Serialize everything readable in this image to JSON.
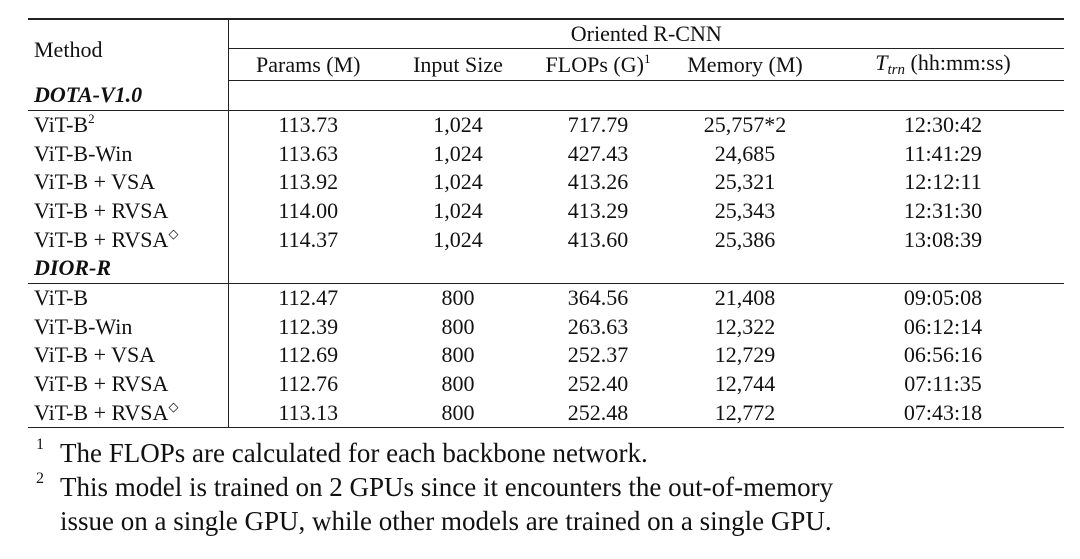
{
  "table": {
    "method_header": "Method",
    "group_header": "Oriented R-CNN",
    "columns": {
      "params": "Params (M)",
      "input_size": "Input Size",
      "flops": "FLOPs (G)",
      "flops_note_mark": "1",
      "memory": "Memory (M)",
      "ttrn_symbol": "T",
      "ttrn_subscript": "trn",
      "ttrn_units": "(hh:mm:ss)"
    },
    "sections": [
      {
        "name": "DOTA-V1.0",
        "rows": [
          {
            "method": "ViT-B",
            "mark": "2",
            "params": "113.73",
            "input_size": "1,024",
            "flops": "717.79",
            "memory": "25,757*2",
            "ttrn": "12:30:42"
          },
          {
            "method": "ViT-B-Win",
            "mark": "",
            "params": "113.63",
            "input_size": "1,024",
            "flops": "427.43",
            "memory": "24,685",
            "ttrn": "11:41:29"
          },
          {
            "method": "ViT-B + VSA",
            "mark": "",
            "params": "113.92",
            "input_size": "1,024",
            "flops": "413.26",
            "memory": "25,321",
            "ttrn": "12:12:11"
          },
          {
            "method": "ViT-B + RVSA",
            "mark": "",
            "params": "114.00",
            "input_size": "1,024",
            "flops": "413.29",
            "memory": "25,343",
            "ttrn": "12:31:30"
          },
          {
            "method": "ViT-B + RVSA",
            "mark": "◇",
            "params": "114.37",
            "input_size": "1,024",
            "flops": "413.60",
            "memory": "25,386",
            "ttrn": "13:08:39"
          }
        ]
      },
      {
        "name": "DIOR-R",
        "rows": [
          {
            "method": "ViT-B",
            "mark": "",
            "params": "112.47",
            "input_size": "800",
            "flops": "364.56",
            "memory": "21,408",
            "ttrn": "09:05:08"
          },
          {
            "method": "ViT-B-Win",
            "mark": "",
            "params": "112.39",
            "input_size": "800",
            "flops": "263.63",
            "memory": "12,322",
            "ttrn": "06:12:14"
          },
          {
            "method": "ViT-B + VSA",
            "mark": "",
            "params": "112.69",
            "input_size": "800",
            "flops": "252.37",
            "memory": "12,729",
            "ttrn": "06:56:16"
          },
          {
            "method": "ViT-B + RVSA",
            "mark": "",
            "params": "112.76",
            "input_size": "800",
            "flops": "252.40",
            "memory": "12,744",
            "ttrn": "07:11:35"
          },
          {
            "method": "ViT-B + RVSA",
            "mark": "◇",
            "params": "113.13",
            "input_size": "800",
            "flops": "252.48",
            "memory": "12,772",
            "ttrn": "07:43:18"
          }
        ]
      }
    ]
  },
  "footnotes": [
    {
      "mark": "1",
      "lines": [
        "The FLOPs are calculated for each backbone network."
      ]
    },
    {
      "mark": "2",
      "lines": [
        "This model is trained on 2 GPUs since it encounters the out-of-memory",
        "issue on a single GPU, while other models are trained on a single GPU."
      ]
    }
  ]
}
